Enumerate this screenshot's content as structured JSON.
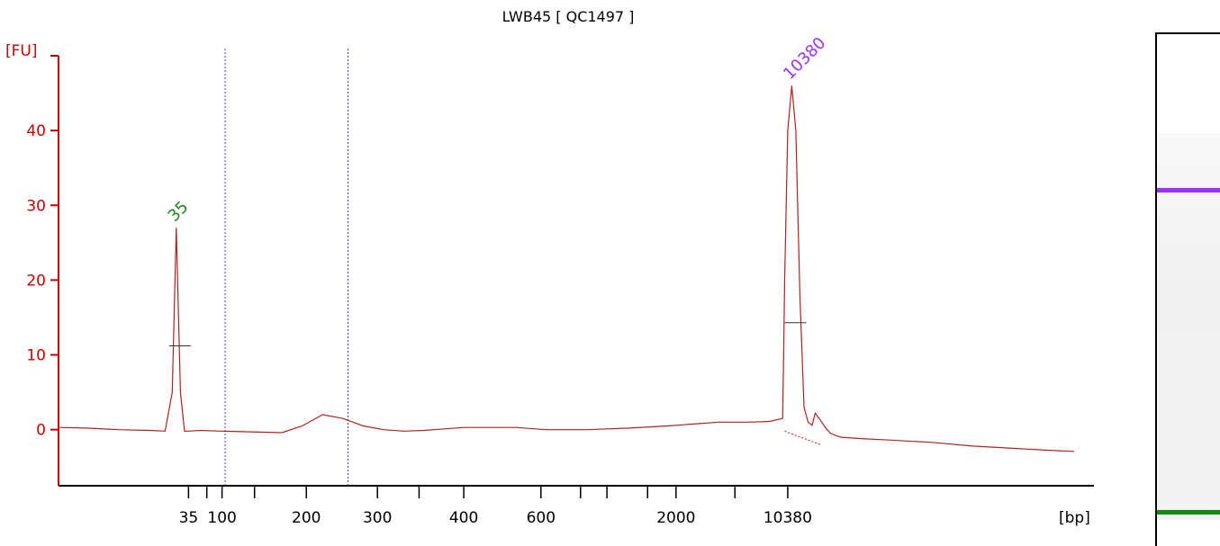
{
  "chart_data": {
    "type": "line",
    "title": "LWB45  [ QC1497 ]",
    "ylabel": "[FU]",
    "xlabel": "[bp]",
    "ylim": [
      -7.5,
      50
    ],
    "yticks": [
      "0",
      "10",
      "20",
      "30",
      "40"
    ],
    "xticks": [
      "35",
      "100",
      "200",
      "300",
      "400",
      "600",
      "2000",
      "10380"
    ],
    "xlim": [
      0,
      100
    ],
    "series": [
      {
        "color": "#b22222",
        "x": [
          0,
          3,
          6,
          9,
          10.5,
          11.2,
          11.6,
          12,
          12.4,
          12.8,
          14,
          16,
          19,
          22,
          24,
          26,
          28,
          30,
          32,
          34,
          36,
          38,
          40,
          42,
          45,
          48,
          52,
          56,
          60,
          63,
          65,
          68,
          70,
          71.3,
          71.5,
          71.8,
          72.2,
          72.6,
          73,
          73.4,
          73.8,
          74.2,
          74.5,
          75,
          75.5,
          76,
          77,
          79,
          82,
          86,
          90,
          94,
          98,
          100
        ],
        "y": [
          0.3,
          0.2,
          0.0,
          -0.1,
          -0.2,
          5,
          27,
          5,
          -0.2,
          -0.2,
          -0.1,
          -0.2,
          -0.3,
          -0.4,
          0.5,
          2.0,
          1.5,
          0.5,
          0,
          -0.2,
          -0.1,
          0.1,
          0.3,
          0.3,
          0.3,
          0.0,
          0.0,
          0.2,
          0.5,
          0.8,
          1.0,
          1.0,
          1.1,
          1.5,
          20,
          40,
          46,
          40,
          18,
          3,
          1.0,
          0.6,
          2.2,
          1.3,
          0.3,
          -0.5,
          -1.0,
          -1.2,
          -1.4,
          -1.7,
          -2.2,
          -2.5,
          -2.8,
          -2.9
        ]
      }
    ],
    "peaks": [
      {
        "label": "35",
        "x": 11.6,
        "y": 27,
        "half_height": 11.2,
        "color": "#1a8a1a"
      },
      {
        "label": "10380",
        "x": 72.2,
        "y": 46,
        "half_height": 14.3,
        "color": "#9b30ff"
      }
    ],
    "region_markers_x": [
      16.4,
      28.5
    ],
    "legend": "none",
    "grid": false
  },
  "gel": {
    "bands": [
      {
        "name": "10380",
        "color": "#9b30ff",
        "position": 0.3
      },
      {
        "name": "35",
        "color": "#118a11",
        "position": 0.93
      }
    ]
  }
}
